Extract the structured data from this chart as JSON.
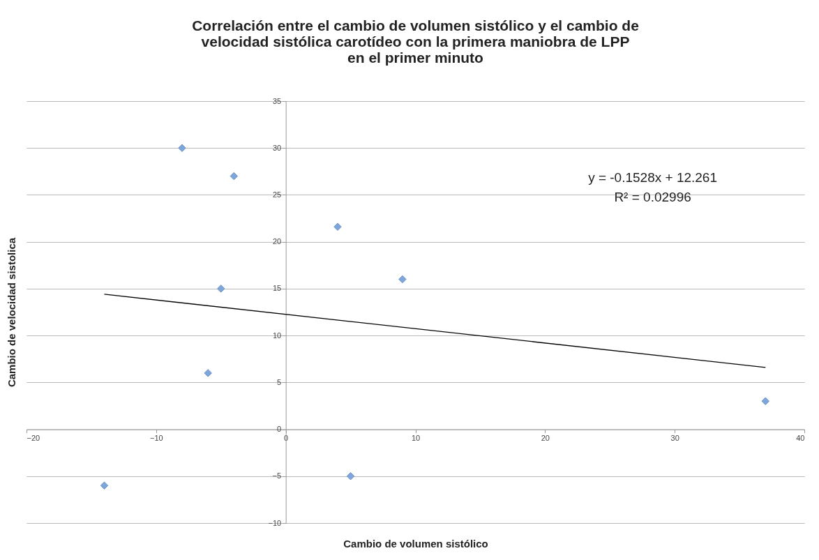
{
  "chart_data": {
    "type": "scatter",
    "title": "Correlación entre el cambio de volumen sistólico y el cambio de\nvelocidad sistólica carotídeo con la primera maniobra de LPP\nen el primer minuto",
    "xlabel": "Cambio de volumen sistólico",
    "ylabel": "Cambio de velocidad sistolica",
    "xlim": [
      -20,
      40
    ],
    "xticks": [
      -20,
      -10,
      0,
      10,
      20,
      30,
      40
    ],
    "ylim": [
      -10,
      35
    ],
    "yticks": [
      -10,
      -5,
      0,
      5,
      10,
      15,
      20,
      25,
      30,
      35
    ],
    "grid": "y",
    "marker": "diamond",
    "series": [
      {
        "color": "#7ea6dc",
        "x": [
          -14,
          -8,
          -4,
          -5,
          -6,
          4,
          9,
          5,
          37
        ],
        "values": [
          -6,
          30,
          27,
          15,
          6,
          21.6,
          16,
          -5,
          3
        ]
      },
      {
        "type": "line",
        "marker": "none",
        "color": "#000000",
        "x": [
          -14,
          37
        ],
        "values": [
          14.4,
          6.6
        ]
      }
    ],
    "annotations": [
      "y = -0.1528x + 12.261",
      "R² = 0.02996"
    ]
  }
}
